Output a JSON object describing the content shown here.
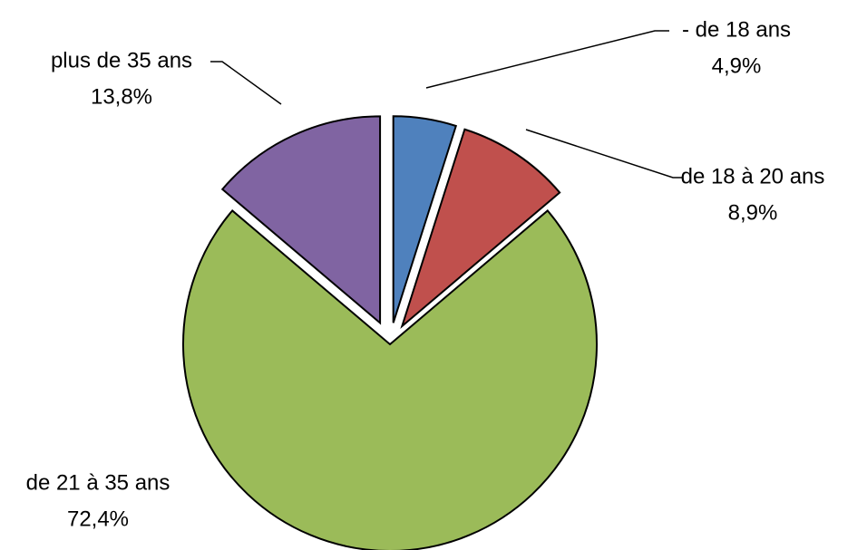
{
  "chart_data": {
    "type": "pie",
    "title": "",
    "slices": [
      {
        "label": "- de 18 ans",
        "value": 4.9,
        "value_label": "4,9%",
        "color": "#4F81BD"
      },
      {
        "label": "de 18 à 20 ans",
        "value": 8.9,
        "value_label": "8,9%",
        "color": "#C0504D"
      },
      {
        "label": "de 21 à 35 ans",
        "value": 72.4,
        "value_label": "72,4%",
        "color": "#9BBB59"
      },
      {
        "label": "plus de 35 ans",
        "value": 13.8,
        "value_label": "13,8%",
        "color": "#8064A2"
      }
    ],
    "exploded": true,
    "legend": "none",
    "data_labels": "outside with leader lines"
  }
}
